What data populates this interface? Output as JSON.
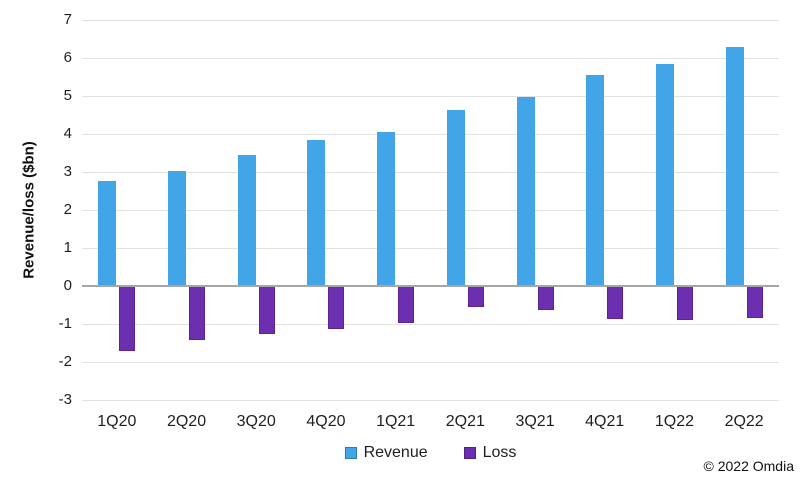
{
  "chart_data": {
    "type": "bar",
    "categories": [
      "1Q20",
      "2Q20",
      "3Q20",
      "4Q20",
      "1Q21",
      "2Q21",
      "3Q21",
      "4Q21",
      "1Q22",
      "2Q22"
    ],
    "series": [
      {
        "name": "Revenue",
        "color": "#42A5E8",
        "values": [
          2.77,
          3.02,
          3.45,
          3.83,
          4.04,
          4.62,
          4.97,
          5.55,
          5.84,
          6.28
        ]
      },
      {
        "name": "Loss",
        "color": "#6B2FB0",
        "values": [
          -1.72,
          -1.43,
          -1.27,
          -1.13,
          -0.97,
          -0.55,
          -0.63,
          -0.87,
          -0.89,
          -0.83
        ]
      }
    ],
    "title": "",
    "xlabel": "",
    "ylabel": "Revenue/loss ($bn)",
    "ylim": [
      -3,
      7
    ],
    "yticks": [
      7,
      6,
      5,
      4,
      3,
      2,
      1,
      0,
      -1,
      -2,
      -3
    ],
    "grid": true,
    "legend_position": "bottom",
    "colors": {
      "gridline": "#E2E2E2",
      "zero_axis": "#A6A6A6",
      "text": "#1f1f1f"
    }
  },
  "footer": {
    "copyright": "© 2022 Omdia"
  }
}
